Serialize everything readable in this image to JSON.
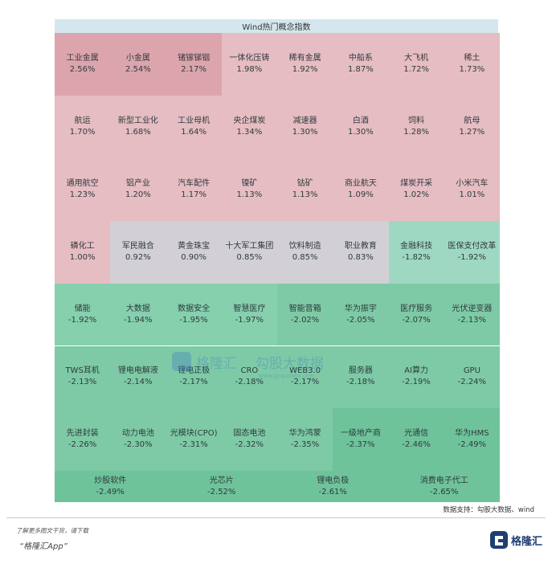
{
  "title": "Wind热门概念指数",
  "source": "数据支持：勾股大数据、wind",
  "footer": {
    "line1": "了解更多图文干货，请下载",
    "line2": "“格隆汇App”"
  },
  "watermark_text": {
    "brand": "格隆汇",
    "product": "勾股大数据",
    "url": "www.gogudata.com"
  },
  "logo_text": "格隆汇",
  "colors": {
    "strong_red": "#dca5ad",
    "red": "#e6bdc2",
    "neutral": "#d2d0d5",
    "light_green": "#9fd8c2",
    "green": "#86d0ad",
    "mid_green": "#7ecaa6",
    "strong_green": "#6fc39b"
  },
  "chart_data": {
    "type": "heatmap",
    "title": "Wind热门概念指数",
    "unit": "%",
    "items": [
      {
        "name": "工业金属",
        "change": 2.56,
        "label": "2.56%",
        "tone": "strong_red"
      },
      {
        "name": "小金属",
        "change": 2.54,
        "label": "2.54%",
        "tone": "strong_red"
      },
      {
        "name": "锗镓锑铟",
        "change": 2.17,
        "label": "2.17%",
        "tone": "strong_red"
      },
      {
        "name": "一体化压铸",
        "change": 1.98,
        "label": "1.98%",
        "tone": "red"
      },
      {
        "name": "稀有金属",
        "change": 1.92,
        "label": "1.92%",
        "tone": "red"
      },
      {
        "name": "中船系",
        "change": 1.87,
        "label": "1.87%",
        "tone": "red"
      },
      {
        "name": "大飞机",
        "change": 1.72,
        "label": "1.72%",
        "tone": "red"
      },
      {
        "name": "稀土",
        "change": 1.73,
        "label": "1.73%",
        "tone": "red"
      },
      {
        "name": "航运",
        "change": 1.7,
        "label": "1.70%",
        "tone": "red"
      },
      {
        "name": "新型工业化",
        "change": 1.68,
        "label": "1.68%",
        "tone": "red"
      },
      {
        "name": "工业母机",
        "change": 1.64,
        "label": "1.64%",
        "tone": "red"
      },
      {
        "name": "央企煤炭",
        "change": 1.34,
        "label": "1.34%",
        "tone": "red"
      },
      {
        "name": "减速器",
        "change": 1.3,
        "label": "1.30%",
        "tone": "red"
      },
      {
        "name": "白酒",
        "change": 1.3,
        "label": "1.30%",
        "tone": "red"
      },
      {
        "name": "饲料",
        "change": 1.28,
        "label": "1.28%",
        "tone": "red"
      },
      {
        "name": "航母",
        "change": 1.27,
        "label": "1.27%",
        "tone": "red"
      },
      {
        "name": "通用航空",
        "change": 1.23,
        "label": "1.23%",
        "tone": "red"
      },
      {
        "name": "铝产业",
        "change": 1.2,
        "label": "1.20%",
        "tone": "red"
      },
      {
        "name": "汽车配件",
        "change": 1.17,
        "label": "1.17%",
        "tone": "red"
      },
      {
        "name": "镍矿",
        "change": 1.13,
        "label": "1.13%",
        "tone": "red"
      },
      {
        "name": "钴矿",
        "change": 1.13,
        "label": "1.13%",
        "tone": "red"
      },
      {
        "name": "商业航天",
        "change": 1.09,
        "label": "1.09%",
        "tone": "red"
      },
      {
        "name": "煤炭开采",
        "change": 1.02,
        "label": "1.02%",
        "tone": "red"
      },
      {
        "name": "小米汽车",
        "change": 1.01,
        "label": "1.01%",
        "tone": "red"
      },
      {
        "name": "磷化工",
        "change": 1.0,
        "label": "1.00%",
        "tone": "red"
      },
      {
        "name": "军民融合",
        "change": 0.92,
        "label": "0.92%",
        "tone": "neutral"
      },
      {
        "name": "黄金珠宝",
        "change": 0.9,
        "label": "0.90%",
        "tone": "neutral"
      },
      {
        "name": "十大军工集团",
        "change": 0.85,
        "label": "0.85%",
        "tone": "neutral"
      },
      {
        "name": "饮料制造",
        "change": 0.85,
        "label": "0.85%",
        "tone": "neutral"
      },
      {
        "name": "职业教育",
        "change": 0.83,
        "label": "0.83%",
        "tone": "neutral"
      },
      {
        "name": "金融科技",
        "change": -1.82,
        "label": "-1.82%",
        "tone": "light_green"
      },
      {
        "name": "医保支付改革",
        "change": -1.92,
        "label": "-1.92%",
        "tone": "light_green"
      },
      {
        "name": "储能",
        "change": -1.92,
        "label": "-1.92%",
        "tone": "green"
      },
      {
        "name": "大数据",
        "change": -1.94,
        "label": "-1.94%",
        "tone": "green"
      },
      {
        "name": "数据安全",
        "change": -1.95,
        "label": "-1.95%",
        "tone": "green"
      },
      {
        "name": "智慧医疗",
        "change": -1.97,
        "label": "-1.97%",
        "tone": "green"
      },
      {
        "name": "智能音箱",
        "change": -2.02,
        "label": "-2.02%",
        "tone": "mid_green"
      },
      {
        "name": "华为振宇",
        "change": -2.05,
        "label": "-2.05%",
        "tone": "mid_green"
      },
      {
        "name": "医疗服务",
        "change": -2.07,
        "label": "-2.07%",
        "tone": "mid_green"
      },
      {
        "name": "光伏逆变器",
        "change": -2.13,
        "label": "-2.13%",
        "tone": "mid_green"
      },
      {
        "name": "TWS耳机",
        "change": -2.13,
        "label": "-2.13%",
        "tone": "mid_green"
      },
      {
        "name": "锂电电解液",
        "change": -2.14,
        "label": "-2.14%",
        "tone": "mid_green"
      },
      {
        "name": "锂电正极",
        "change": -2.17,
        "label": "-2.17%",
        "tone": "mid_green"
      },
      {
        "name": "CRO",
        "change": -2.18,
        "label": "-2.18%",
        "tone": "mid_green"
      },
      {
        "name": "WEB3.0",
        "change": -2.17,
        "label": "-2.17%",
        "tone": "mid_green"
      },
      {
        "name": "服务器",
        "change": -2.18,
        "label": "-2.18%",
        "tone": "mid_green"
      },
      {
        "name": "AI算力",
        "change": -2.19,
        "label": "-2.19%",
        "tone": "mid_green"
      },
      {
        "name": "GPU",
        "change": -2.24,
        "label": "-2.24%",
        "tone": "mid_green"
      },
      {
        "name": "先进封装",
        "change": -2.26,
        "label": "-2.26%",
        "tone": "mid_green"
      },
      {
        "name": "动力电池",
        "change": -2.3,
        "label": "-2.30%",
        "tone": "mid_green"
      },
      {
        "name": "光模块(CPO)",
        "change": -2.31,
        "label": "-2.31%",
        "tone": "mid_green"
      },
      {
        "name": "固态电池",
        "change": -2.32,
        "label": "-2.32%",
        "tone": "mid_green"
      },
      {
        "name": "华为鸿蒙",
        "change": -2.35,
        "label": "-2.35%",
        "tone": "mid_green"
      },
      {
        "name": "一级地产商",
        "change": -2.37,
        "label": "-2.37%",
        "tone": "strong_green"
      },
      {
        "name": "光通信",
        "change": -2.46,
        "label": "-2.46%",
        "tone": "strong_green"
      },
      {
        "name": "华为HMS",
        "change": -2.49,
        "label": "-2.49%",
        "tone": "strong_green"
      },
      {
        "name": "炒股软件",
        "change": -2.49,
        "label": "-2.49%",
        "tone": "strong_green"
      },
      {
        "name": "光芯片",
        "change": -2.52,
        "label": "-2.52%",
        "tone": "strong_green"
      },
      {
        "name": "锂电负极",
        "change": -2.61,
        "label": "-2.61%",
        "tone": "strong_green"
      },
      {
        "name": "消费电子代工",
        "change": -2.65,
        "label": "-2.65%",
        "tone": "strong_green"
      }
    ]
  }
}
